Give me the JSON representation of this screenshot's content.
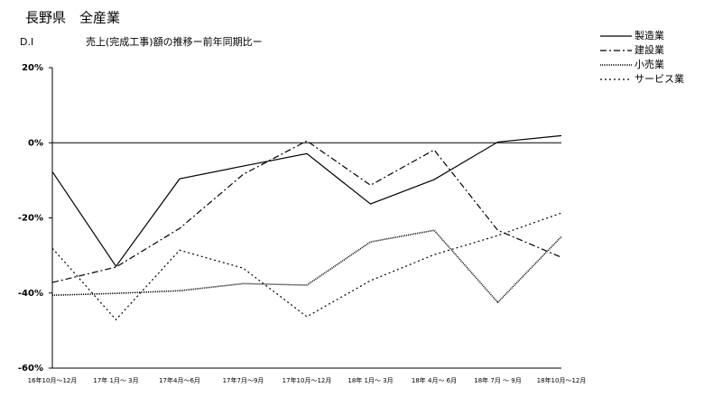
{
  "chart_data": {
    "type": "line",
    "heading": "長野県　全産業",
    "ylabel": "D.I",
    "title": "売上(完成工事)額の推移ー前年同期比ー",
    "categories": [
      "16年10月～12月",
      "17年 1月～ 3月",
      "17年4月～6月",
      "17年7月～9月",
      "17年10月～12月",
      "18年 1月～ 3月",
      "18年 4月～ 6月",
      "18年 7月 ～ 9月",
      "18年10月～12月"
    ],
    "series": [
      {
        "name": "製造業",
        "color": "#000000",
        "dash": "none",
        "values": [
          -7.7,
          -32.9,
          -9.6,
          -6.2,
          -2.9,
          -16.3,
          -9.8,
          0.2,
          1.9
        ]
      },
      {
        "name": "建設業",
        "color": "#000000",
        "dash": "7 3 2 3",
        "values": [
          -37.2,
          -33.1,
          -22.8,
          -8.4,
          0.5,
          -11.3,
          -1.9,
          -23.3,
          -30.5
        ]
      },
      {
        "name": "小売業",
        "color": "#000000",
        "dash": "1 1",
        "values": [
          -40.6,
          -40.1,
          -39.4,
          -37.5,
          -37.9,
          -26.4,
          -23.3,
          -42.5,
          -25
        ]
      },
      {
        "name": "サービス業",
        "color": "#000000",
        "dash": "2 3",
        "values": [
          -28.1,
          -47.1,
          -28.6,
          -33.4,
          -46.3,
          -36.7,
          -29.8,
          -24.7,
          -18.7
        ]
      }
    ],
    "ylim": [
      -60,
      20
    ],
    "yticks": [
      {
        "value": 20,
        "label": "20%"
      },
      {
        "value": 0,
        "label": "0%"
      },
      {
        "value": -20,
        "label": "-20%"
      },
      {
        "value": -40,
        "label": "-40%"
      },
      {
        "value": -60,
        "label": "-60%"
      }
    ],
    "legend": "top-right"
  }
}
